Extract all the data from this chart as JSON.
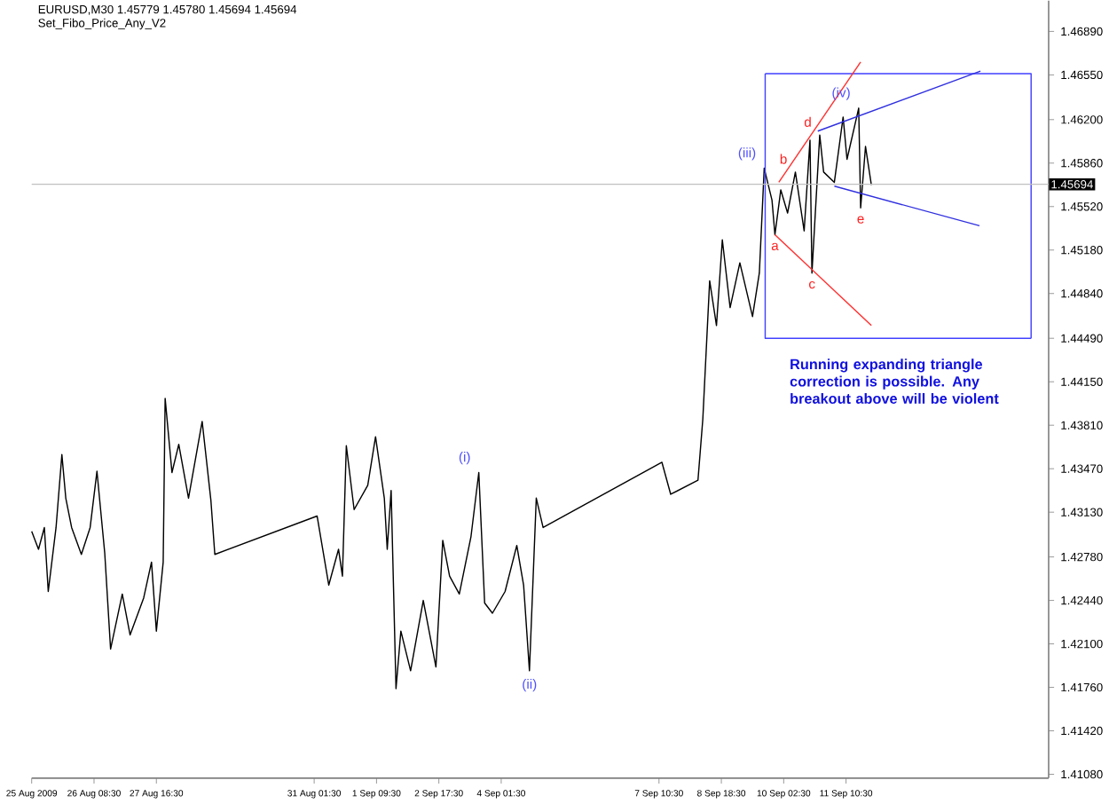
{
  "chart_data": {
    "type": "line",
    "title": "EURUSD,M30  1.45779 1.45780 1.45694 1.45694",
    "subtitle": "Set_Fibo_Price_Any_V2",
    "xlim": [
      "2009-08-25T00:30",
      "2009-09-15T18:30"
    ],
    "ylim": [
      1.4105,
      1.4713
    ],
    "xticks": [
      {
        "value": "2009-08-25T00:30",
        "label": "25 Aug 2009"
      },
      {
        "value": "2009-08-26T08:30",
        "label": "26 Aug 08:30"
      },
      {
        "value": "2009-08-27T16:30",
        "label": "27 Aug 16:30"
      },
      {
        "value": "2009-08-31T01:30",
        "label": "31 Aug 01:30"
      },
      {
        "value": "2009-09-01T09:30",
        "label": "1 Sep 09:30"
      },
      {
        "value": "2009-09-02T17:30",
        "label": "2 Sep 17:30"
      },
      {
        "value": "2009-09-04T01:30",
        "label": "4 Sep 01:30"
      },
      {
        "value": "2009-09-07T10:30",
        "label": "7 Sep 10:30"
      },
      {
        "value": "2009-09-08T18:30",
        "label": "8 Sep 18:30"
      },
      {
        "value": "2009-09-10T02:30",
        "label": "10 Sep 02:30"
      },
      {
        "value": "2009-09-11T10:30",
        "label": "11 Sep 10:30"
      }
    ],
    "yticks": [
      {
        "value": 1.4108,
        "label": "1.41080"
      },
      {
        "value": 1.4142,
        "label": "1.41420"
      },
      {
        "value": 1.4176,
        "label": "1.41760"
      },
      {
        "value": 1.421,
        "label": "1.42100"
      },
      {
        "value": 1.4244,
        "label": "1.42440"
      },
      {
        "value": 1.4278,
        "label": "1.42780"
      },
      {
        "value": 1.4313,
        "label": "1.43130"
      },
      {
        "value": 1.4347,
        "label": "1.43470"
      },
      {
        "value": 1.4381,
        "label": "1.43810"
      },
      {
        "value": 1.4415,
        "label": "1.44150"
      },
      {
        "value": 1.4449,
        "label": "1.44490"
      },
      {
        "value": 1.4484,
        "label": "1.44840"
      },
      {
        "value": 1.4518,
        "label": "1.45180"
      },
      {
        "value": 1.4552,
        "label": "1.45520"
      },
      {
        "value": 1.4586,
        "label": "1.45860"
      },
      {
        "value": 1.462,
        "label": "1.46200"
      },
      {
        "value": 1.4655,
        "label": "1.46550"
      },
      {
        "value": 1.4689,
        "label": "1.46890"
      }
    ],
    "series": [
      {
        "color": "#000000",
        "x": [
          "2009-08-25T00:30",
          "2009-08-25T04:00",
          "2009-08-25T07:00",
          "2009-08-25T09:00",
          "2009-08-25T13:00",
          "2009-08-25T16:00",
          "2009-08-25T18:00",
          "2009-08-25T21:00",
          "2009-08-26T02:00",
          "2009-08-26T06:30",
          "2009-08-26T10:00",
          "2009-08-26T14:00",
          "2009-08-26T17:00",
          "2009-08-26T23:00",
          "2009-08-27T03:00",
          "2009-08-27T10:00",
          "2009-08-27T14:00",
          "2009-08-27T16:30",
          "2009-08-27T20:00",
          "2009-08-27T21:00",
          "2009-08-28T00:30",
          "2009-08-28T04:00",
          "2009-08-28T09:00",
          "2009-08-28T16:00",
          "2009-08-28T20:30",
          "2009-08-28T22:30",
          "2009-08-31T03:00",
          "2009-08-31T09:00",
          "2009-08-31T14:00",
          "2009-08-31T16:00",
          "2009-08-31T18:00",
          "2009-08-31T22:00",
          "2009-09-01T05:00",
          "2009-09-01T09:00",
          "2009-09-01T13:30",
          "2009-09-01T15:00",
          "2009-09-01T17:00",
          "2009-09-01T19:30",
          "2009-09-01T22:00",
          "2009-09-02T03:00",
          "2009-09-02T09:30",
          "2009-09-02T16:00",
          "2009-09-02T19:30",
          "2009-09-02T23:00",
          "2009-09-03T04:00",
          "2009-09-03T10:00",
          "2009-09-03T14:00",
          "2009-09-03T17:00",
          "2009-09-03T21:00",
          "2009-09-04T03:30",
          "2009-09-04T09:30",
          "2009-09-04T13:00",
          "2009-09-04T16:00",
          "2009-09-04T19:30",
          "2009-09-04T23:00",
          "2009-09-07T12:00",
          "2009-09-07T16:30",
          "2009-09-08T06:30",
          "2009-09-08T09:00",
          "2009-09-08T12:30",
          "2009-09-08T16:00",
          "2009-09-08T19:00",
          "2009-09-08T23:00",
          "2009-09-09T04:00",
          "2009-09-09T10:30",
          "2009-09-09T14:00",
          "2009-09-09T16:30",
          "2009-09-09T20:30",
          "2009-09-09T22:00",
          "2009-09-10T01:00",
          "2009-09-10T04:30",
          "2009-09-10T08:30",
          "2009-09-10T13:00",
          "2009-09-10T16:00",
          "2009-09-10T17:00",
          "2009-09-10T21:00",
          "2009-09-10T23:00",
          "2009-09-11T04:30",
          "2009-09-11T09:00",
          "2009-09-11T11:00",
          "2009-09-11T17:00",
          "2009-09-11T18:00",
          "2009-09-11T20:30",
          "2009-09-11T23:30"
        ],
        "values": [
          1.4298,
          1.4284,
          1.4301,
          1.4251,
          1.4301,
          1.4358,
          1.4324,
          1.4301,
          1.428,
          1.4301,
          1.4345,
          1.4281,
          1.4206,
          1.4249,
          1.4217,
          1.4246,
          1.4274,
          1.422,
          1.4274,
          1.4402,
          1.4344,
          1.4366,
          1.4324,
          1.4384,
          1.4322,
          1.428,
          1.431,
          1.4256,
          1.4284,
          1.4263,
          1.4365,
          1.4315,
          1.4334,
          1.4372,
          1.4324,
          1.4284,
          1.433,
          1.4175,
          1.422,
          1.4189,
          1.4244,
          1.4192,
          1.4291,
          1.4263,
          1.4249,
          1.4294,
          1.4344,
          1.4242,
          1.4234,
          1.4251,
          1.4287,
          1.4256,
          1.4189,
          1.4324,
          1.4301,
          1.4352,
          1.4327,
          1.4338,
          1.4386,
          1.4494,
          1.4459,
          1.4526,
          1.4473,
          1.4508,
          1.4466,
          1.45,
          1.4582,
          1.4557,
          1.453,
          1.4565,
          1.4547,
          1.4579,
          1.4533,
          1.4604,
          1.45,
          1.4608,
          1.4579,
          1.4571,
          1.4622,
          1.4589,
          1.4629,
          1.4551,
          1.4599,
          1.4569
        ]
      },
      {
        "color": "#4040ff",
        "x": [
          "2009-09-09T17:00",
          "2009-09-15T09:30",
          "2009-09-15T09:30"
        ],
        "values": [
          1.4656,
          1.4656,
          1.4449
        ]
      },
      {
        "color": "#4040ff",
        "x": [
          "2009-09-09T17:00",
          "2009-09-09T17:00",
          "2009-09-15T09:30"
        ],
        "values": [
          1.4656,
          1.4449,
          1.4449
        ]
      },
      {
        "color": "#ff3030",
        "x": [
          "2009-09-10T00:00",
          "2009-09-11T18:00"
        ],
        "values": [
          1.4571,
          1.4665
        ]
      },
      {
        "color": "#ff3030",
        "x": [
          "2009-09-09T22:00",
          "2009-09-11T23:30"
        ],
        "values": [
          1.453,
          1.4459
        ]
      },
      {
        "color": "#3030e0",
        "x": [
          "2009-09-10T20:00",
          "2009-09-14T07:30"
        ],
        "values": [
          1.4611,
          1.4658
        ]
      },
      {
        "color": "#3030e0",
        "x": [
          "2009-09-11T04:30",
          "2009-09-14T07:00"
        ],
        "values": [
          1.4568,
          1.4537
        ]
      }
    ],
    "ref_lines": [
      {
        "axis": "y",
        "value": 1.45694,
        "label": "1.45694",
        "color": "#c0c0c0"
      }
    ],
    "annotations": [
      {
        "text": "(i)",
        "x": "2009-09-03T14:00",
        "y": 1.4344
      },
      {
        "text": "(ii)",
        "x": "2009-09-04T16:00",
        "y": 1.4189
      },
      {
        "text": "(iii)",
        "x": "2009-09-09T16:30",
        "y": 1.4582
      },
      {
        "text": "(iv)",
        "x": "2009-09-11T17:00",
        "y": 1.4629
      },
      {
        "text": "a",
        "x": "2009-09-09T22:00",
        "y": 1.453
      },
      {
        "text": "b",
        "x": "2009-09-10T08:30",
        "y": 1.4579
      },
      {
        "text": "c",
        "x": "2009-09-10T17:00",
        "y": 1.45
      },
      {
        "text": "d",
        "x": "2009-09-10T21:00",
        "y": 1.4608
      },
      {
        "text": "e",
        "x": "2009-09-11T18:00",
        "y": 1.4551
      },
      "Running expanding triangle correction is possible. Any breakout above will be violent"
    ]
  }
}
